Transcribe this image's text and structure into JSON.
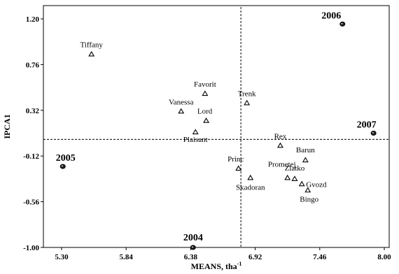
{
  "chart_data": {
    "type": "scatter",
    "xlabel": "MEANS, tha",
    "xlabel_superscript": "-1",
    "ylabel": "IPCA1",
    "xlim": [
      5.3,
      8.0
    ],
    "ylim": [
      -1.0,
      1.2
    ],
    "x_ticks": [
      "5.30",
      "5.84",
      "6.38",
      "6.92",
      "7.46",
      "8.00"
    ],
    "x_tick_values": [
      5.3,
      5.84,
      6.38,
      6.92,
      7.46,
      8.0
    ],
    "y_ticks": [
      "1.20",
      "0.76",
      "0.32",
      "-0.12",
      "-0.56",
      "-1.00"
    ],
    "y_tick_values": [
      1.2,
      0.76,
      0.32,
      -0.12,
      -0.56,
      -1.0
    ],
    "reference_lines": {
      "x": 6.8,
      "y": 0.04
    },
    "genotypes": [
      {
        "name": "Tiffany",
        "x": 5.55,
        "y": 0.86
      },
      {
        "name": "Vanessa",
        "x": 6.3,
        "y": 0.31
      },
      {
        "name": "Favorit",
        "x": 6.5,
        "y": 0.48
      },
      {
        "name": "Lord",
        "x": 6.51,
        "y": 0.22
      },
      {
        "name": "Plaisant",
        "x": 6.42,
        "y": 0.11
      },
      {
        "name": "Trenk",
        "x": 6.85,
        "y": 0.39
      },
      {
        "name": "Rex",
        "x": 7.13,
        "y": -0.02
      },
      {
        "name": "Barun",
        "x": 7.34,
        "y": -0.16
      },
      {
        "name": "Princ",
        "x": 6.78,
        "y": -0.24
      },
      {
        "name": "Skadoran",
        "x": 6.88,
        "y": -0.33
      },
      {
        "name": "Prometej",
        "x": 7.19,
        "y": -0.33
      },
      {
        "name": "Zlatko",
        "x": 7.25,
        "y": -0.34
      },
      {
        "name": "Gvozd",
        "x": 7.31,
        "y": -0.39
      },
      {
        "name": "Bingo",
        "x": 7.36,
        "y": -0.45
      }
    ],
    "environments": [
      {
        "name": "2005",
        "x": 5.31,
        "y": -0.22
      },
      {
        "name": "2006",
        "x": 7.65,
        "y": 1.15
      },
      {
        "name": "2007",
        "x": 7.91,
        "y": 0.1
      },
      {
        "name": "2004",
        "x": 6.4,
        "y": -1.0
      }
    ]
  }
}
